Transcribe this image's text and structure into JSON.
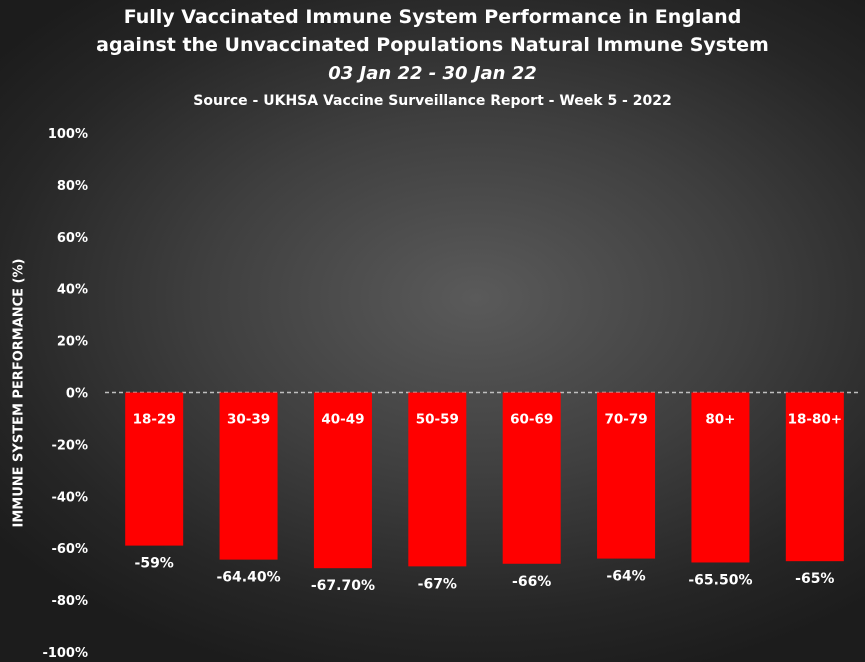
{
  "chart_data": {
    "type": "bar",
    "title": "Fully Vaccinated Immune System Performance in England",
    "title_line2": "against the Unvaccinated Populations Natural Immune System",
    "subtitle": "03 Jan 22 - 30 Jan 22",
    "source": "Source - UKHSA Vaccine Surveillance Report - Week 5 - 2022",
    "xlabel": "",
    "ylabel": "IMMUNE SYSTEM PERFORMANCE (%)",
    "ylim": [
      -100,
      100
    ],
    "yticks": [
      100,
      80,
      60,
      40,
      20,
      0,
      -20,
      -40,
      -60,
      -80,
      -100
    ],
    "ytick_labels": [
      "100%",
      "80%",
      "60%",
      "40%",
      "20%",
      "0%",
      "-20%",
      "-40%",
      "-60%",
      "-80%",
      "-100%"
    ],
    "categories": [
      "18-29",
      "30-39",
      "40-49",
      "50-59",
      "60-69",
      "70-79",
      "80+",
      "18-80+"
    ],
    "values": [
      -59,
      -64.4,
      -67.7,
      -67,
      -66,
      -64,
      -65.5,
      -65
    ],
    "value_labels": [
      "-59%",
      "-64.40%",
      "-67.70%",
      "-67%",
      "-66%",
      "-64%",
      "-65.50%",
      "-65%"
    ],
    "bar_color": "#ff0000",
    "zero_line": "dashed",
    "grid": false,
    "legend": "none"
  }
}
